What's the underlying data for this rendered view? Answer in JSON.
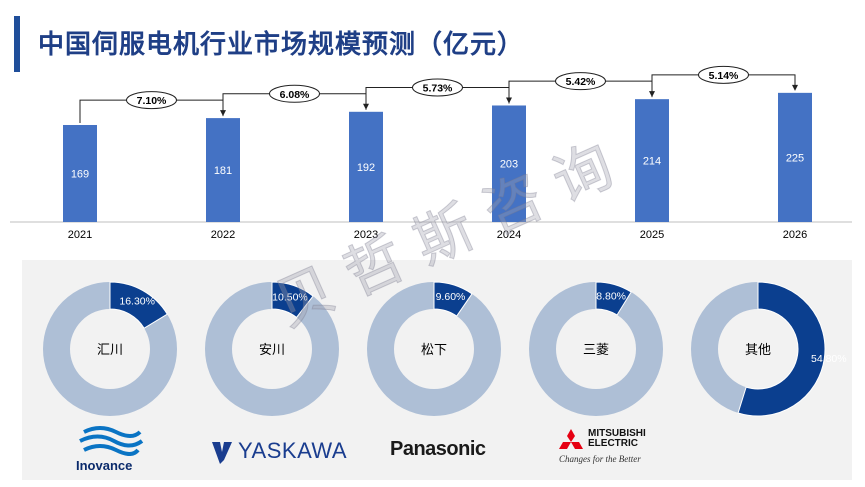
{
  "title": "中国伺服电机行业市场规模预测（亿元）",
  "watermark": "贝哲斯咨询",
  "colors": {
    "bar": "#4472c4",
    "donut_main": "#0b3f8f",
    "donut_rest": "#aebfd6",
    "title": "#1f3f86"
  },
  "chart_data": [
    {
      "type": "bar",
      "categories": [
        "2021",
        "2022",
        "2023",
        "2024",
        "2025",
        "2026"
      ],
      "values": [
        169,
        181,
        192,
        203,
        214,
        225
      ],
      "growth_labels": [
        "7.10%",
        "6.08%",
        "5.73%",
        "5.42%",
        "5.14%"
      ],
      "title": "中国伺服电机行业市场规模预测（亿元）"
    },
    {
      "type": "pie",
      "donuts": [
        {
          "label": "汇川",
          "share": 16.3,
          "share_label": "16.30%"
        },
        {
          "label": "安川",
          "share": 10.5,
          "share_label": "10.50%"
        },
        {
          "label": "松下",
          "share": 9.6,
          "share_label": "9.60%"
        },
        {
          "label": "三菱",
          "share": 8.8,
          "share_label": "8.80%"
        },
        {
          "label": "其他",
          "share": 54.8,
          "share_label": "54.80%"
        }
      ]
    }
  ],
  "logos": {
    "inovance": "Inovance",
    "yaskawa": "YASKAWA",
    "panasonic": "Panasonic",
    "mitsubishi_line1": "MITSUBISHI",
    "mitsubishi_line2": "ELECTRIC",
    "mitsubishi_tagline": "Changes for the Better"
  }
}
